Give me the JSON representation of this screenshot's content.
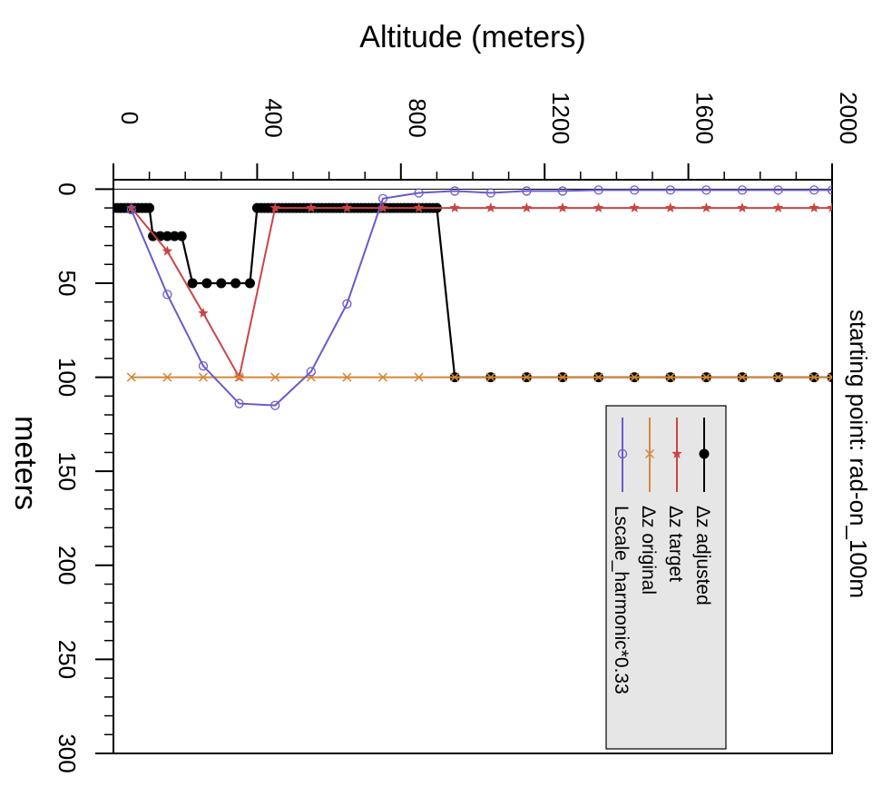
{
  "chart_data": {
    "type": "line",
    "orientation": "rotated-90-clockwise",
    "title": "starting point: rad-on_100m",
    "xlabel": "Altitude (meters)",
    "ylabel": "meters",
    "xlim": [
      0,
      2000
    ],
    "ylim": [
      -5,
      300
    ],
    "x_ticks": [
      0,
      400,
      800,
      1200,
      1600,
      2000
    ],
    "y_ticks": [
      0,
      50,
      100,
      150,
      200,
      250,
      300
    ],
    "zero_line": true,
    "grid": false,
    "legend_position": "bottom-left",
    "series": [
      {
        "name": "Δz adjusted",
        "color": "#000000",
        "marker": "filled-circle",
        "points": [
          [
            0,
            10
          ],
          [
            10,
            10
          ],
          [
            20,
            10
          ],
          [
            30,
            10
          ],
          [
            40,
            10
          ],
          [
            50,
            10
          ],
          [
            60,
            10
          ],
          [
            70,
            10
          ],
          [
            80,
            10
          ],
          [
            90,
            10
          ],
          [
            100,
            10
          ],
          [
            110,
            25
          ],
          [
            130,
            25
          ],
          [
            150,
            25
          ],
          [
            170,
            25
          ],
          [
            190,
            25
          ],
          [
            220,
            50
          ],
          [
            260,
            50
          ],
          [
            300,
            50
          ],
          [
            340,
            50
          ],
          [
            380,
            50
          ],
          [
            400,
            10
          ],
          [
            410,
            10
          ],
          [
            420,
            10
          ],
          [
            430,
            10
          ],
          [
            440,
            10
          ],
          [
            450,
            10
          ],
          [
            460,
            10
          ],
          [
            470,
            10
          ],
          [
            480,
            10
          ],
          [
            490,
            10
          ],
          [
            500,
            10
          ],
          [
            510,
            10
          ],
          [
            520,
            10
          ],
          [
            530,
            10
          ],
          [
            540,
            10
          ],
          [
            550,
            10
          ],
          [
            560,
            10
          ],
          [
            570,
            10
          ],
          [
            580,
            10
          ],
          [
            590,
            10
          ],
          [
            600,
            10
          ],
          [
            610,
            10
          ],
          [
            620,
            10
          ],
          [
            630,
            10
          ],
          [
            640,
            10
          ],
          [
            650,
            10
          ],
          [
            660,
            10
          ],
          [
            670,
            10
          ],
          [
            680,
            10
          ],
          [
            690,
            10
          ],
          [
            700,
            10
          ],
          [
            710,
            10
          ],
          [
            720,
            10
          ],
          [
            730,
            10
          ],
          [
            740,
            10
          ],
          [
            750,
            10
          ],
          [
            760,
            10
          ],
          [
            770,
            10
          ],
          [
            780,
            10
          ],
          [
            790,
            10
          ],
          [
            800,
            10
          ],
          [
            810,
            10
          ],
          [
            820,
            10
          ],
          [
            830,
            10
          ],
          [
            840,
            10
          ],
          [
            850,
            10
          ],
          [
            860,
            10
          ],
          [
            870,
            10
          ],
          [
            880,
            10
          ],
          [
            890,
            10
          ],
          [
            900,
            10
          ],
          [
            950,
            100
          ],
          [
            1050,
            100
          ],
          [
            1150,
            100
          ],
          [
            1250,
            100
          ],
          [
            1350,
            100
          ],
          [
            1450,
            100
          ],
          [
            1550,
            100
          ],
          [
            1650,
            100
          ],
          [
            1750,
            100
          ],
          [
            1850,
            100
          ],
          [
            1950,
            100
          ],
          [
            2000,
            100
          ]
        ]
      },
      {
        "name": "Δz target",
        "color": "#cc4444",
        "marker": "star",
        "points": [
          [
            50,
            10
          ],
          [
            150,
            33
          ],
          [
            250,
            66
          ],
          [
            350,
            100
          ],
          [
            450,
            10
          ],
          [
            550,
            10
          ],
          [
            650,
            10
          ],
          [
            750,
            10
          ],
          [
            850,
            10
          ],
          [
            950,
            10
          ],
          [
            1050,
            10
          ],
          [
            1150,
            10
          ],
          [
            1250,
            10
          ],
          [
            1350,
            10
          ],
          [
            1450,
            10
          ],
          [
            1550,
            10
          ],
          [
            1650,
            10
          ],
          [
            1750,
            10
          ],
          [
            1850,
            10
          ],
          [
            1950,
            10
          ],
          [
            2000,
            10
          ]
        ]
      },
      {
        "name": "Δz original",
        "color": "#d4883a",
        "marker": "cross",
        "points": [
          [
            50,
            100
          ],
          [
            150,
            100
          ],
          [
            250,
            100
          ],
          [
            350,
            100
          ],
          [
            450,
            100
          ],
          [
            550,
            100
          ],
          [
            650,
            100
          ],
          [
            750,
            100
          ],
          [
            850,
            100
          ],
          [
            950,
            100
          ],
          [
            1050,
            100
          ],
          [
            1150,
            100
          ],
          [
            1250,
            100
          ],
          [
            1350,
            100
          ],
          [
            1450,
            100
          ],
          [
            1550,
            100
          ],
          [
            1650,
            100
          ],
          [
            1750,
            100
          ],
          [
            1850,
            100
          ],
          [
            1950,
            100
          ],
          [
            2000,
            100
          ]
        ]
      },
      {
        "name": "Lscale_harmonic*0.33",
        "color": "#6a5acd",
        "marker": "open-circle",
        "points": [
          [
            50,
            11
          ],
          [
            150,
            56
          ],
          [
            250,
            94
          ],
          [
            350,
            114
          ],
          [
            450,
            115
          ],
          [
            550,
            97
          ],
          [
            650,
            61
          ],
          [
            750,
            5
          ],
          [
            850,
            2
          ],
          [
            950,
            1
          ],
          [
            1050,
            2
          ],
          [
            1150,
            1
          ],
          [
            1250,
            1
          ],
          [
            1350,
            0.5
          ],
          [
            1450,
            0.5
          ],
          [
            1550,
            0.5
          ],
          [
            1650,
            0.5
          ],
          [
            1750,
            0.5
          ],
          [
            1850,
            0.5
          ],
          [
            1950,
            0.5
          ],
          [
            2000,
            0.5
          ]
        ]
      }
    ]
  }
}
